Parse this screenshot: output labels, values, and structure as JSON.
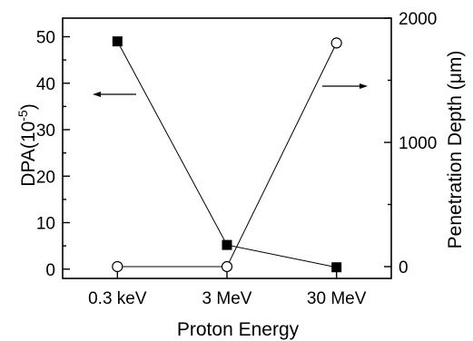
{
  "chart_data": {
    "type": "line",
    "xlabel": "Proton Energy",
    "ylabel_left": "DPA(10",
    "ylabel_left_sup": "-5",
    "ylabel_left_close": ")",
    "ylabel_right": "Penetration Depth (μm)",
    "categories": [
      "0.3 keV",
      "3 MeV",
      "30 MeV"
    ],
    "ylim_left": [
      -2,
      54
    ],
    "yticks_left": [
      0,
      10,
      20,
      30,
      40,
      50
    ],
    "ylim_right": [
      -95,
      2000
    ],
    "yticks_right": [
      0,
      1000,
      2000
    ],
    "series": [
      {
        "axis": "left",
        "marker": "filled-square",
        "values": [
          49,
          5.2,
          0.4
        ]
      },
      {
        "axis": "right",
        "marker": "open-circle",
        "values": [
          0.03,
          0.1,
          1800
        ]
      }
    ],
    "annotations": [
      {
        "type": "arrow",
        "direction": "left",
        "points_to_axis": "left"
      },
      {
        "type": "arrow",
        "direction": "right",
        "points_to_axis": "right"
      }
    ],
    "grid": false,
    "legend": "none"
  }
}
